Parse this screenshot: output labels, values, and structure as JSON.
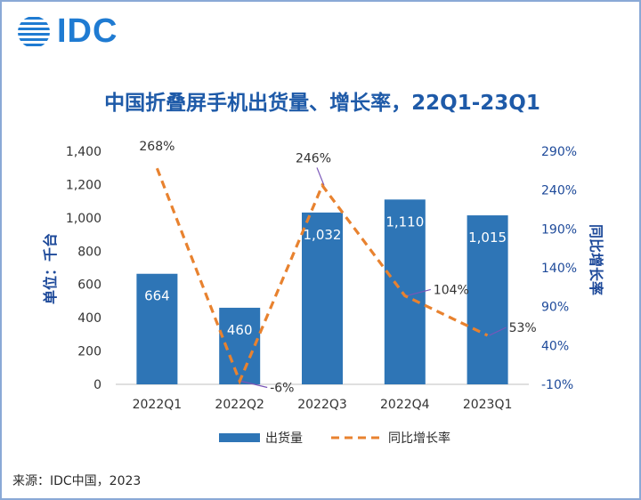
{
  "logo": {
    "text": "IDC",
    "icon": "idc-globe-icon"
  },
  "chart_data": {
    "type": "bar",
    "title": "中国折叠屏手机出货量、增长率，22Q1-23Q1",
    "categories": [
      "2022Q1",
      "2022Q2",
      "2022Q3",
      "2022Q4",
      "2023Q1"
    ],
    "series": [
      {
        "name": "出货量",
        "type": "bar",
        "axis": "left",
        "values": [
          664,
          460,
          1032,
          1110,
          1015
        ],
        "labels": [
          "664",
          "460",
          "1,032",
          "1,110",
          "1,015"
        ]
      },
      {
        "name": "同比增长率",
        "type": "line",
        "axis": "right",
        "style": "dashed",
        "values": [
          268,
          -6,
          246,
          104,
          53
        ],
        "labels": [
          "268%",
          "-6%",
          "246%",
          "104%",
          "53%"
        ]
      }
    ],
    "ylabel": "单位：千台",
    "y2label": "同比增长率",
    "ylim": [
      0,
      1400
    ],
    "y2lim": [
      -10,
      290
    ],
    "yticks": [
      "0",
      "200",
      "400",
      "600",
      "800",
      "1,000",
      "1,200",
      "1,400"
    ],
    "y2ticks": [
      "-10%",
      "40%",
      "90%",
      "140%",
      "190%",
      "240%",
      "290%"
    ],
    "colors": {
      "bar": "#2e75b6",
      "line": "#e8822f",
      "axis_text": "#1e4a9a",
      "callout": "#7a56b8"
    },
    "legend_position": "bottom",
    "grid": false
  },
  "source": "来源：IDC中国，2023"
}
